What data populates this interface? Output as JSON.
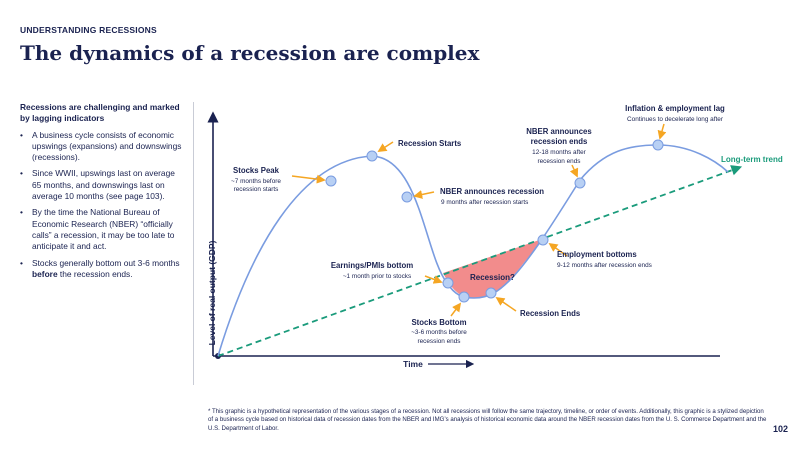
{
  "header": {
    "eyebrow": "UNDERSTANDING RECESSIONS",
    "title": "The dynamics of a recession are complex"
  },
  "sidebar": {
    "heading": "Recessions are challenging and marked by lagging indicators",
    "bullets": [
      "A business cycle consists of economic upswings (expansions) and downswings (recessions).",
      "Since WWII, upswings last on average 65 months, and downswings last on average 10 months (see page 103).",
      "By the time the National Bureau of Economic Research (NBER) “officially calls” a recession, it may be too late to anticipate it and act."
    ],
    "last_bullet": {
      "before": "Stocks generally bottom out 3-6 months ",
      "bold": "before",
      "after": " the recession ends."
    }
  },
  "diagram": {
    "y_axis_label": "Level of real output (GDP)",
    "x_axis_label": "Time",
    "trend_label": "Long-term trend",
    "recession_label": "Recession?",
    "colors": {
      "navy": "#1a2250",
      "curve": "#7a9ce0",
      "point_fill": "#b8d0f4",
      "arrow": "#f5a623",
      "trend": "#1a9b7b",
      "recession_fill": "#f28c8c"
    },
    "annotations": {
      "stocks_peak": {
        "title": "Stocks Peak",
        "line1": "~7 months before",
        "line2": "recession starts"
      },
      "recession_starts": {
        "title": "Recession Starts"
      },
      "nber_announces": {
        "title": "NBER announces recession",
        "line1": "9 months after recession starts"
      },
      "earnings_bottom": {
        "title": "Earnings/PMIs bottom",
        "line1": "~1 month prior to stocks"
      },
      "stocks_bottom": {
        "title": "Stocks Bottom",
        "line1": "~3-6 months before",
        "line2": "recession ends"
      },
      "recession_ends": {
        "title": "Recession Ends"
      },
      "employment_bottoms": {
        "title": "Employment bottoms",
        "line1": "9-12 months after recession ends"
      },
      "nber_ends": {
        "title1": "NBER announces",
        "title2": "recession ends",
        "line1": "12-18 months after",
        "line2": "recession ends"
      },
      "inflation_lag": {
        "title": "Inflation & employment lag",
        "line1": "Continues to decelerate long after"
      }
    }
  },
  "footnote": "* This graphic is a hypothetical representation of the various stages of a recession. Not all recessions will follow the same trajectory, timeline, or order of events. Additionally, this graphic is a stylized depiction of a business cycle based on historical data of recession dates from the NBER and IMG’s analysis of historical economic data around the NBER recession dates from the U. S. Commerce Department and the U.S. Department of Labor.",
  "page_number": "102"
}
